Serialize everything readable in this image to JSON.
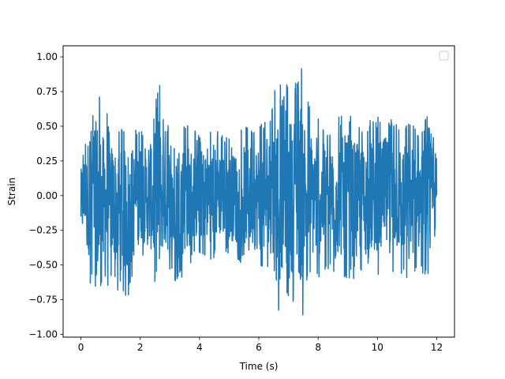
{
  "chart_data": {
    "type": "line",
    "title": "",
    "xlabel": "Time (s)",
    "ylabel": "Strain",
    "xlim": [
      -0.6,
      12.6
    ],
    "ylim": [
      -1.02,
      1.08
    ],
    "xticks": [
      0,
      2,
      4,
      6,
      8,
      10,
      12
    ],
    "xtick_labels": [
      "0",
      "2",
      "4",
      "6",
      "8",
      "10",
      "12"
    ],
    "yticks": [
      -1.0,
      -0.75,
      -0.5,
      -0.25,
      0.0,
      0.25,
      0.5,
      0.75,
      1.0
    ],
    "ytick_labels": [
      "−1.00",
      "−0.75",
      "−0.50",
      "−0.25",
      "0.00",
      "0.25",
      "0.50",
      "0.75",
      "1.00"
    ],
    "grid": false,
    "legend": {
      "placement": "top-right",
      "entries": []
    },
    "series": [
      {
        "color": "#1f77b4",
        "x_start": 0,
        "x_end": 12,
        "approx_range": [
          -0.92,
          1.0
        ],
        "envelope": {
          "t": [
            0,
            0.1,
            0.2,
            0.3,
            0.4,
            0.55,
            0.75,
            1.0,
            1.3,
            1.6,
            2.0,
            2.4,
            2.65,
            2.7,
            2.9,
            3.3,
            3.7,
            4.0,
            4.3,
            4.7,
            5.1,
            5.5,
            6.0,
            6.3,
            6.7,
            6.85,
            7.0,
            7.3,
            7.45,
            7.6,
            7.9,
            8.3,
            8.7,
            9.0,
            9.4,
            9.8,
            10.2,
            10.6,
            11.0,
            11.4,
            11.7,
            12.0
          ],
          "upper": [
            0.25,
            0.38,
            0.42,
            0.75,
            0.62,
            0.8,
            0.65,
            0.55,
            0.48,
            0.53,
            0.5,
            0.48,
            0.88,
            0.6,
            0.52,
            0.58,
            0.5,
            0.44,
            0.52,
            0.45,
            0.42,
            0.5,
            0.53,
            0.55,
            0.92,
            0.95,
            0.75,
            0.85,
            1.0,
            0.7,
            0.6,
            0.5,
            0.58,
            0.62,
            0.5,
            0.55,
            0.58,
            0.55,
            0.52,
            0.5,
            0.58,
            0.42
          ],
          "lower": [
            -0.22,
            -0.3,
            -0.42,
            -0.7,
            -0.55,
            -0.85,
            -0.9,
            -0.6,
            -0.7,
            -0.75,
            -0.45,
            -0.55,
            -0.92,
            -0.58,
            -0.55,
            -0.65,
            -0.5,
            -0.42,
            -0.48,
            -0.42,
            -0.45,
            -0.5,
            -0.55,
            -0.6,
            -0.88,
            -0.7,
            -0.75,
            -0.8,
            -0.92,
            -0.65,
            -0.62,
            -0.55,
            -0.6,
            -0.65,
            -0.55,
            -0.58,
            -0.6,
            -0.55,
            -0.6,
            -0.55,
            -0.62,
            -0.4
          ]
        }
      }
    ]
  }
}
